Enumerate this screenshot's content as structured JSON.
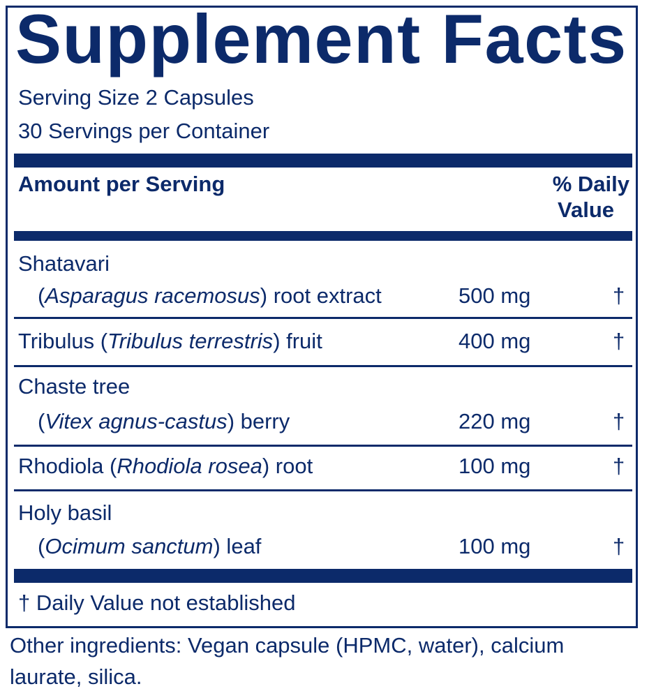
{
  "title": "Supplement Facts",
  "serving_size": "Serving Size 2 Capsules",
  "servings_per_container": "30 Servings per Container",
  "header": {
    "amount": "Amount per Serving",
    "dv_line1": "% Daily",
    "dv_line2": "Value"
  },
  "ingredients": [
    {
      "name": "Shatavari",
      "pre": "(",
      "latin": "Asparagus racemosus",
      "post": ") root extract",
      "amount": "500 mg",
      "dv": "†"
    },
    {
      "name": "Tribulus (",
      "latin": "Tribulus terrestris",
      "post": ") fruit",
      "amount": "400 mg",
      "dv": "†"
    },
    {
      "name": "Chaste tree",
      "pre": "(",
      "latin": "Vitex agnus-castus",
      "post": ") berry",
      "amount": "220 mg",
      "dv": "†"
    },
    {
      "name": "Rhodiola (",
      "latin": "Rhodiola rosea",
      "post": ") root",
      "amount": "100 mg",
      "dv": "†"
    },
    {
      "name": "Holy basil",
      "pre": "(",
      "latin": "Ocimum sanctum",
      "post": ") leaf",
      "amount": "100 mg",
      "dv": "†"
    }
  ],
  "footnote": "† Daily Value not established",
  "other_ingredients_1": "Other ingredients: Vegan capsule (HPMC, water), calcium",
  "other_ingredients_2": "laurate, silica.",
  "colors": {
    "ink": "#0c2a6a"
  }
}
